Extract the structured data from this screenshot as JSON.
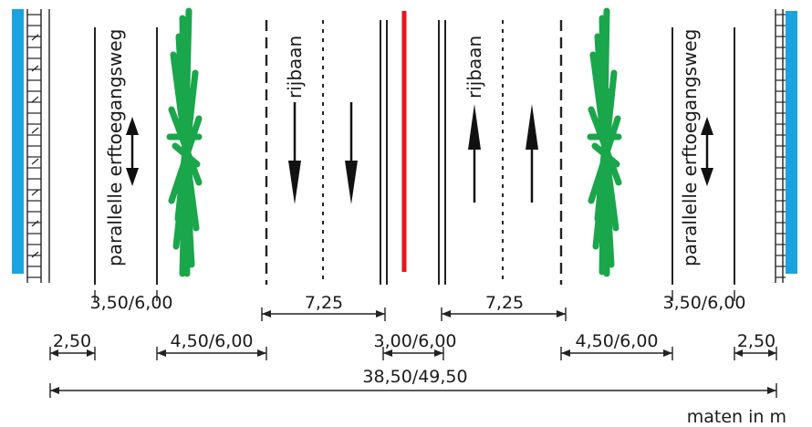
{
  "colors": {
    "sidewalk": "#1aa3e0",
    "trees": "#1aa64a",
    "median": "#e8141b",
    "lines": "#222222"
  },
  "icons": {
    "trees": "tree-row-icon",
    "arrows": "direction-arrow-icon",
    "buildings": "building-facade-icon"
  },
  "lane_labels": {
    "left_access": "parallelle erftoegangsweg",
    "left_carriageway": "rijbaan",
    "right_carriageway": "rijbaan",
    "right_access": "parallelle erftoegangsweg"
  },
  "dimensions": {
    "left_access_width": "3,50/6,00",
    "left_carriageway_width": "7,25",
    "right_carriageway_width": "7,25",
    "right_access_width": "3,50/6,00",
    "left_sidewalk": "2,50",
    "left_verge": "4,50/6,00",
    "median_width": "3,00/6,00",
    "right_verge": "4,50/6,00",
    "right_sidewalk": "2,50",
    "total": "38,50/49,50"
  },
  "units_note": "maten in m"
}
